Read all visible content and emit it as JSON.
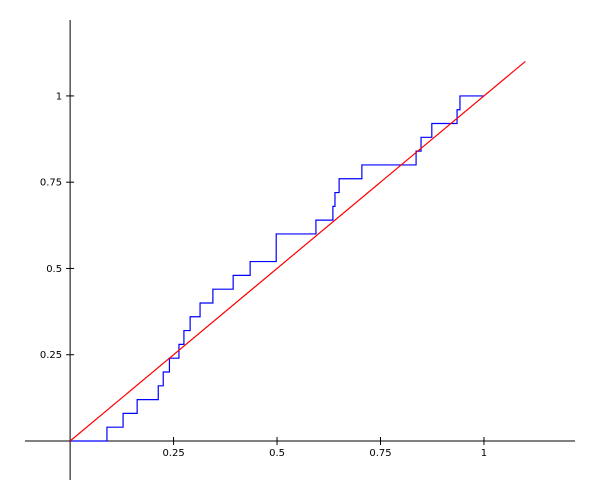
{
  "chart_data": {
    "type": "line",
    "xlim": [
      -0.109,
      1.22
    ],
    "ylim": [
      -0.113,
      1.22
    ],
    "xticks": [
      0.25,
      0.5,
      0.75,
      1
    ],
    "yticks": [
      0.25,
      0.5,
      0.75,
      1
    ],
    "series": [
      {
        "color": "#0000ff",
        "x": [
          0,
          0.089,
          0.089,
          0.128,
          0.128,
          0.162,
          0.162,
          0.213,
          0.213,
          0.225,
          0.225,
          0.24,
          0.24,
          0.263,
          0.263,
          0.275,
          0.275,
          0.29,
          0.29,
          0.314,
          0.314,
          0.345,
          0.345,
          0.394,
          0.394,
          0.435,
          0.435,
          0.498,
          0.498,
          0.594,
          0.594,
          0.635,
          0.635,
          0.64,
          0.64,
          0.65,
          0.65,
          0.705,
          0.705,
          0.836,
          0.836,
          0.848,
          0.848,
          0.874,
          0.874,
          0.935,
          0.935,
          0.942,
          0.942,
          1
        ],
        "values": [
          0,
          0,
          0.04,
          0.04,
          0.08,
          0.08,
          0.12,
          0.12,
          0.16,
          0.16,
          0.2,
          0.2,
          0.24,
          0.24,
          0.28,
          0.28,
          0.32,
          0.32,
          0.36,
          0.36,
          0.4,
          0.4,
          0.44,
          0.44,
          0.48,
          0.48,
          0.52,
          0.52,
          0.6,
          0.6,
          0.64,
          0.64,
          0.68,
          0.68,
          0.72,
          0.72,
          0.76,
          0.76,
          0.8,
          0.8,
          0.84,
          0.84,
          0.88,
          0.88,
          0.92,
          0.92,
          0.96,
          0.96,
          1,
          1
        ]
      },
      {
        "color": "#ff0000",
        "x": [
          0,
          1.1
        ],
        "values": [
          0,
          1.1
        ]
      }
    ]
  }
}
